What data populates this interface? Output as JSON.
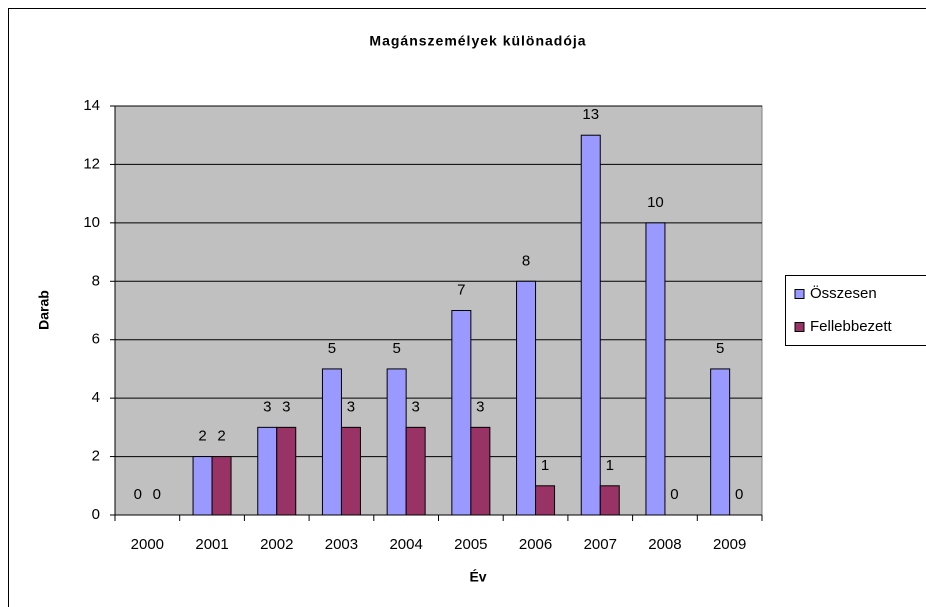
{
  "chart_data": {
    "type": "bar",
    "title": "Magánszemélyek különadója",
    "x_label": "Év",
    "y_label": "Darab",
    "categories": [
      "2000",
      "2001",
      "2002",
      "2003",
      "2004",
      "2005",
      "2006",
      "2007",
      "2008",
      "2009"
    ],
    "series": [
      {
        "name": "Összesen",
        "color": "#9999ff",
        "values": [
          0,
          2,
          3,
          5,
          5,
          7,
          8,
          13,
          10,
          5
        ]
      },
      {
        "name": "Fellebbezett",
        "color": "#993366",
        "values": [
          0,
          2,
          3,
          3,
          3,
          3,
          1,
          1,
          0,
          0
        ]
      }
    ],
    "ylim": [
      0,
      14
    ],
    "yticks": [
      0,
      2,
      4,
      6,
      8,
      10,
      12,
      14
    ],
    "grid": true,
    "legend": "right"
  }
}
